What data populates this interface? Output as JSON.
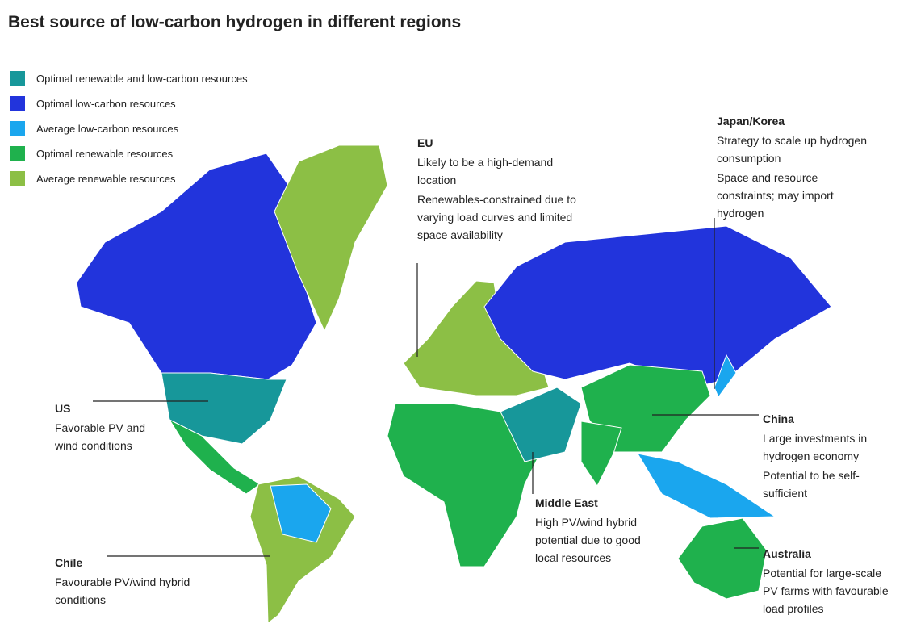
{
  "title": "Best source of low-carbon hydrogen in different regions",
  "legend": [
    {
      "label": "Optimal renewable and low-carbon resources",
      "color": "#17979a"
    },
    {
      "label": "Optimal low-carbon resources",
      "color": "#2234dc"
    },
    {
      "label": "Average low-carbon resources",
      "color": "#1aa6ee"
    },
    {
      "label": "Optimal renewable resources",
      "color": "#1fb14d"
    },
    {
      "label": "Average renewable resources",
      "color": "#8cbf45"
    }
  ],
  "regions": [
    {
      "name": "EU",
      "lines": [
        "Likely to be a high-demand location",
        "Renewables-constrained due to varying load curves and limited space availability"
      ]
    },
    {
      "name": "Japan/Korea",
      "lines": [
        "Strategy to scale up hydrogen consumption",
        "Space and resource constraints; may import hydrogen"
      ]
    },
    {
      "name": "US",
      "lines": [
        "Favorable PV and wind conditions"
      ]
    },
    {
      "name": "China",
      "lines": [
        "Large investments in hydrogen economy",
        "Potential to be self-sufficient"
      ]
    },
    {
      "name": "Middle East",
      "lines": [
        "High PV/wind hybrid potential due to good local resources"
      ]
    },
    {
      "name": "Chile",
      "lines": [
        "Favourable PV/wind hybrid conditions"
      ]
    },
    {
      "name": "Australia",
      "lines": [
        "Potential for large-scale PV farms with favourable load profiles"
      ]
    }
  ]
}
